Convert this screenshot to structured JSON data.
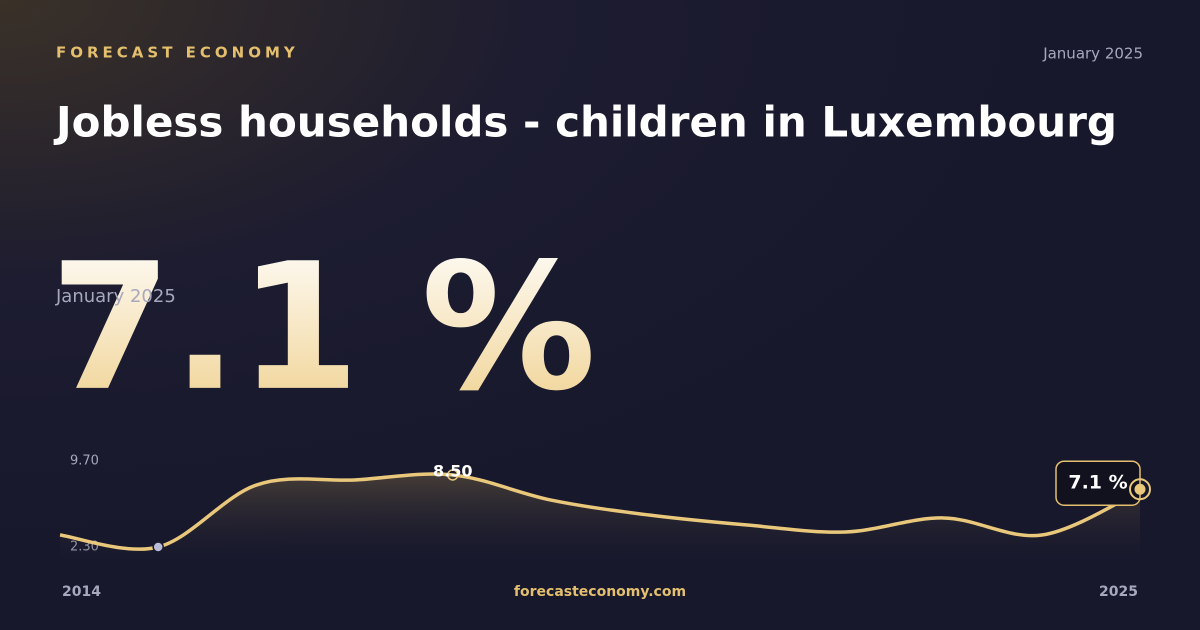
{
  "brand": "FORECAST ECONOMY",
  "date": "January 2025",
  "title": "Jobless households - children in Luxembourg",
  "headline": "7.1 %",
  "headline_date": "January 2025",
  "footer": "forecasteconomy.com",
  "chart_data": {
    "type": "area",
    "x": [
      2014,
      2015,
      2016,
      2017,
      2018,
      2019,
      2020,
      2021,
      2022,
      2023,
      2024,
      2025
    ],
    "values": [
      3.33,
      2.3,
      7.63,
      8.07,
      8.5,
      6.34,
      5.05,
      4.19,
      3.59,
      4.8,
      3.33,
      7.1
    ],
    "value_labels": [
      null,
      null,
      null,
      null,
      "8.50",
      null,
      null,
      null,
      null,
      null,
      null,
      "7.1 %"
    ],
    "color": "#e9c77b",
    "xlim": [
      2014,
      2025
    ],
    "xticks": [
      2014,
      2025
    ],
    "ylim": [
      2.3,
      9.7
    ],
    "yticks": [
      {
        "value": 2.3,
        "label": "2.30"
      },
      {
        "value": 9.7,
        "label": "9.70"
      }
    ]
  }
}
